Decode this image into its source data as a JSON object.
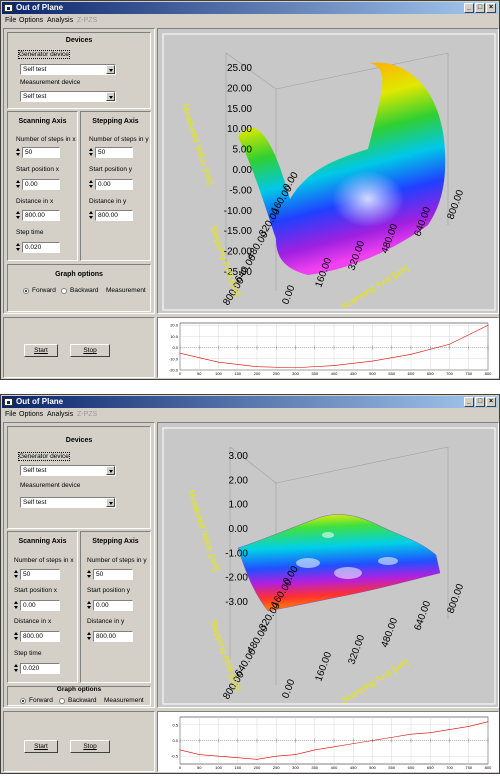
{
  "colors": {
    "titlebar": "#0a246a",
    "face": "#d4d0c8",
    "axis_label": "#e8e800",
    "curve": "#e00000"
  },
  "windows": [
    {
      "title": "Out of Plane",
      "menu": [
        "File",
        "Options",
        "Analysis",
        "Z-PZS"
      ],
      "devices": {
        "title": "Devices",
        "generator_label": "Generator device",
        "generator_value": "Self test",
        "measurement_label": "Measurement device",
        "measurement_value": "Self test"
      },
      "scanning": {
        "title": "Scanning Axis",
        "steps_label": "Number of steps in x",
        "steps_value": "50",
        "start_label": "Start position x",
        "start_value": "0.00",
        "distance_label": "Distance in x",
        "distance_value": "800.00",
        "step_time_label": "Step time",
        "step_time_value": "0.020"
      },
      "stepping": {
        "title": "Stepping Axis",
        "steps_label": "Number of steps in y",
        "steps_value": "50",
        "start_label": "Start position y",
        "start_value": "0.00",
        "distance_label": "Distance in y",
        "distance_value": "800.00"
      },
      "graph_options": {
        "title": "Graph options",
        "forward": "Forward",
        "backward": "Backward",
        "measurement": "Measurement",
        "selected": "forward"
      },
      "buttons": {
        "start": "Start",
        "stop": "Stop"
      },
      "plot3d": {
        "z_ticks": [
          "25.00",
          "20.00",
          "15.00",
          "10.00",
          "5.00",
          "0.00",
          "-5.00",
          "-10.00",
          "-15.00",
          "-20.00",
          "-25.00"
        ],
        "stepping_ticks": [
          "800.00",
          "640.00",
          "480.00",
          "320.00",
          "160.00",
          "0.00"
        ],
        "scanning_ticks": [
          "0.00",
          "160.00",
          "320.00",
          "480.00",
          "640.00",
          "800.00"
        ],
        "z_label": "Measured Value [nm]",
        "stepping_label": "Stepping Axis [µm]",
        "scanning_label": "Scanning Axis [µm]"
      },
      "chart_data": {
        "type": "line",
        "x": [
          0,
          100,
          200,
          300,
          400,
          500,
          600,
          700,
          800
        ],
        "values": [
          -5,
          -13,
          -17,
          -18,
          -16,
          -12,
          -6,
          3,
          20
        ],
        "y_ticks": [
          "20.0",
          "10.0",
          "0.0",
          "-10.0",
          "-20.0"
        ],
        "x_ticks": [
          "0",
          "50",
          "100",
          "150",
          "200",
          "250",
          "300",
          "350",
          "400",
          "450",
          "500",
          "550",
          "600",
          "650",
          "700",
          "750",
          "800"
        ],
        "ylim": [
          -20,
          22
        ],
        "xlim": [
          0,
          800
        ]
      }
    },
    {
      "title": "Out of Plane",
      "menu": [
        "File",
        "Options",
        "Analysis",
        "Z-PZS"
      ],
      "devices": {
        "title": "Devices",
        "generator_label": "Generator device",
        "generator_value": "Self test",
        "measurement_label": "Measurement device",
        "measurement_value": "Self test"
      },
      "scanning": {
        "title": "Scanning Axis",
        "steps_label": "Number of steps in x",
        "steps_value": "50",
        "start_label": "Start position x",
        "start_value": "0.00",
        "distance_label": "Distance in x",
        "distance_value": "800.00",
        "step_time_label": "Step time",
        "step_time_value": "0.020"
      },
      "stepping": {
        "title": "Stepping Axis",
        "steps_label": "Number of steps in y",
        "steps_value": "50",
        "start_label": "Start position y",
        "start_value": "0.00",
        "distance_label": "Distance in y",
        "distance_value": "800.00"
      },
      "graph_options": {
        "title": "Graph options",
        "forward": "Forward",
        "backward": "Backward",
        "measurement": "Measurement",
        "selected": "forward"
      },
      "buttons": {
        "start": "Start",
        "stop": "Stop"
      },
      "plot3d": {
        "z_ticks": [
          "3.00",
          "2.00",
          "1.00",
          "0.00",
          "-1.00",
          "-2.00",
          "-3.00"
        ],
        "stepping_ticks": [
          "800.00",
          "640.00",
          "480.00",
          "320.00",
          "160.00",
          "0.00"
        ],
        "scanning_ticks": [
          "0.00",
          "160.00",
          "320.00",
          "480.00",
          "640.00",
          "800.00"
        ],
        "z_label": "Measured Value [nm]",
        "stepping_label": "Stepping Axis [µm]",
        "scanning_label": "Scanning Axis [µm]"
      },
      "chart_data": {
        "type": "line",
        "x": [
          0,
          50,
          100,
          150,
          200,
          250,
          300,
          350,
          400,
          450,
          500,
          550,
          600,
          650,
          700,
          750,
          800
        ],
        "values": [
          -0.3,
          -0.45,
          -0.5,
          -0.55,
          -0.6,
          -0.5,
          -0.45,
          -0.3,
          -0.2,
          -0.1,
          0.0,
          0.1,
          0.2,
          0.25,
          0.35,
          0.45,
          0.6
        ],
        "y_ticks": [
          "0.5",
          "0.0",
          "-0.5"
        ],
        "x_ticks": [
          "0",
          "50",
          "100",
          "150",
          "200",
          "250",
          "300",
          "350",
          "400",
          "450",
          "500",
          "550",
          "600",
          "650",
          "700",
          "750",
          "800"
        ],
        "ylim": [
          -0.75,
          0.75
        ],
        "xlim": [
          0,
          800
        ]
      }
    }
  ]
}
